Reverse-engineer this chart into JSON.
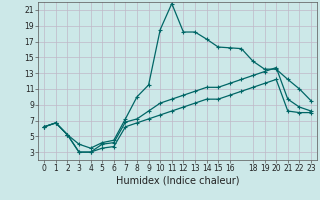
{
  "xlabel": "Humidex (Indice chaleur)",
  "bg_color": "#cce8e8",
  "grid_color": "#b0d4d4",
  "line_color": "#006666",
  "xlim": [
    -0.5,
    23.5
  ],
  "ylim": [
    2,
    22
  ],
  "yticks": [
    3,
    5,
    7,
    9,
    11,
    13,
    15,
    17,
    19,
    21
  ],
  "xticks": [
    0,
    1,
    2,
    3,
    4,
    5,
    6,
    7,
    8,
    9,
    10,
    11,
    12,
    13,
    14,
    15,
    16,
    18,
    19,
    20,
    21,
    22,
    23
  ],
  "series1_x": [
    0,
    1,
    2,
    3,
    4,
    5,
    6,
    7,
    8,
    9,
    10,
    11,
    12,
    13,
    14,
    15,
    16,
    17,
    18,
    19,
    20,
    21,
    22,
    23
  ],
  "series1_y": [
    6.2,
    6.7,
    5.2,
    4.0,
    3.5,
    4.2,
    4.5,
    7.2,
    10.0,
    11.5,
    18.5,
    21.8,
    18.2,
    18.2,
    17.3,
    16.3,
    16.2,
    16.1,
    14.5,
    13.5,
    13.5,
    12.2,
    11.0,
    9.5
  ],
  "series2_x": [
    0,
    1,
    2,
    3,
    4,
    5,
    6,
    7,
    8,
    9,
    10,
    11,
    12,
    13,
    14,
    15,
    16,
    17,
    18,
    19,
    20,
    21,
    22,
    23
  ],
  "series2_y": [
    6.2,
    6.7,
    5.2,
    3.0,
    3.0,
    4.0,
    4.2,
    6.8,
    7.2,
    8.2,
    9.2,
    9.7,
    10.2,
    10.7,
    11.2,
    11.2,
    11.7,
    12.2,
    12.7,
    13.2,
    13.7,
    9.7,
    8.7,
    8.2
  ],
  "series3_x": [
    0,
    1,
    2,
    3,
    4,
    5,
    6,
    7,
    8,
    9,
    10,
    11,
    12,
    13,
    14,
    15,
    16,
    17,
    18,
    19,
    20,
    21,
    22,
    23
  ],
  "series3_y": [
    6.2,
    6.7,
    5.2,
    3.0,
    3.0,
    3.5,
    3.7,
    6.2,
    6.7,
    7.2,
    7.7,
    8.2,
    8.7,
    9.2,
    9.7,
    9.7,
    10.2,
    10.7,
    11.2,
    11.7,
    12.2,
    8.2,
    8.0,
    8.0
  ]
}
